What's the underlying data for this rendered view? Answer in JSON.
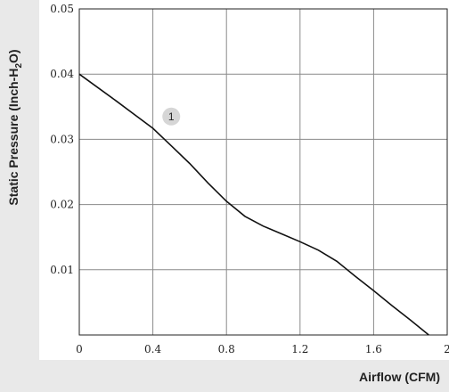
{
  "chart_data": {
    "type": "line",
    "title": "",
    "xlabel": "Airflow (CFM)",
    "ylabel_parts": [
      "Static Pressure (Inch-H",
      "2",
      "O)"
    ],
    "xlim": [
      0,
      2.0
    ],
    "ylim": [
      0,
      0.05
    ],
    "x_ticks": [
      0,
      0.4,
      0.8,
      1.2,
      1.6,
      2.0
    ],
    "x_tick_labels": [
      "0",
      "0.4",
      "0.8",
      "1.2",
      "1.6",
      "2"
    ],
    "y_ticks": [
      0.01,
      0.02,
      0.03,
      0.04,
      0.05
    ],
    "y_tick_labels": [
      "0.01",
      "0.02",
      "0.03",
      "0.04",
      "0.05"
    ],
    "grid": true,
    "series": [
      {
        "marker_label": "1",
        "x": [
          0,
          0.2,
          0.4,
          0.5,
          0.6,
          0.7,
          0.8,
          0.9,
          1.0,
          1.1,
          1.2,
          1.3,
          1.4,
          1.5,
          1.6,
          1.7,
          1.8,
          1.9
        ],
        "y": [
          0.04,
          0.0359,
          0.0317,
          0.029,
          0.0263,
          0.0233,
          0.0205,
          0.0182,
          0.0167,
          0.0155,
          0.0143,
          0.013,
          0.0113,
          0.009,
          0.0068,
          0.0045,
          0.0023,
          0.0
        ],
        "marker_at": [
          0.5,
          0.0335
        ]
      }
    ],
    "colors": {
      "line": "#111111",
      "grid": "#8a8a8a",
      "band": "#e9e9e9",
      "marker": "#d6d6d6"
    }
  }
}
